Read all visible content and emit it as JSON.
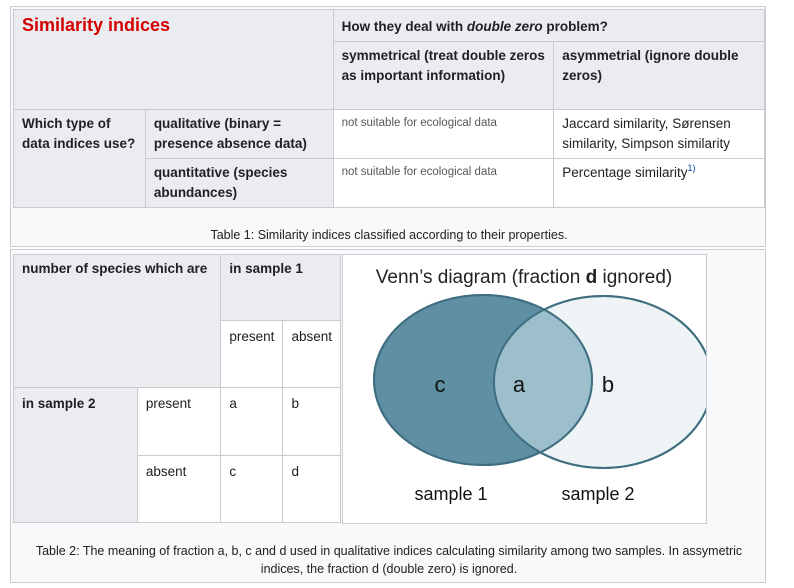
{
  "table1": {
    "title": "Similarity indices",
    "header": {
      "pre": "How they deal with ",
      "em": "double zero",
      "post": " problem?"
    },
    "symmetrical": "symmetrical (treat double zeros as important information)",
    "asymmetrical": "asymmetrial (ignore double zeros)",
    "row_question": "Which type of data indices use?",
    "qualitative": "qualitative (binary = presence absence data)",
    "quantitative": "quantitative (species abundances)",
    "not_suitable": "not suitable for ecological data",
    "qual_asym": "Jaccard similarity, Sørensen similarity, Simpson similarity",
    "quant_asym": "Percentage similarity",
    "quant_asym_ref": "1)",
    "caption": "Table 1: Similarity indices classified according to their properties."
  },
  "table2": {
    "corner": "number of species which are",
    "in_sample1": "in sample 1",
    "present": "present",
    "absent": "absent",
    "in_sample2": "in sample 2",
    "a": "a",
    "b": "b",
    "c": "c",
    "d": "d",
    "caption": "Table 2: The meaning of fraction a, b, c and d used in qualitative indices calculating similarity among two samples. In assymetric indices, the fraction d (double zero) is ignored."
  },
  "venn": {
    "title_pre": "Venn’s diagram (fraction ",
    "title_bold": "d",
    "title_post": " ignored)",
    "label_c": "c",
    "label_a": "a",
    "label_b": "b",
    "sample1": "sample 1",
    "sample2": "sample 2",
    "colors": {
      "sample1_fill": "#5e8fa3",
      "sample2_fill": "#eef3f5",
      "overlap": "#9cbfcb",
      "stroke": "#3f6e80"
    }
  }
}
